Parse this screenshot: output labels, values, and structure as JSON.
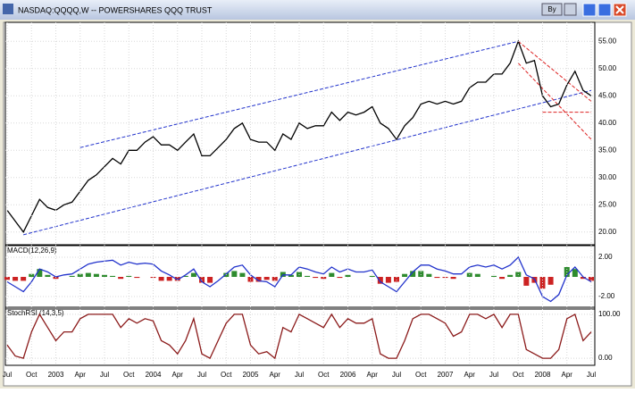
{
  "window_title": "NASDAQ:QQQQ,W -- POWERSHARES QQQ TRUST",
  "window_button": "By",
  "chart_data": [
    {
      "type": "line",
      "ylim": [
        18,
        58
      ],
      "yticks": [
        {
          "value": 20,
          "label": "20.00"
        },
        {
          "value": 25,
          "label": "25.00"
        },
        {
          "value": 30,
          "label": "30.00"
        },
        {
          "value": 35,
          "label": "35.00"
        },
        {
          "value": 40,
          "label": "40.00"
        },
        {
          "value": 45,
          "label": "45.00"
        },
        {
          "value": 50,
          "label": "50.00"
        },
        {
          "value": 55,
          "label": "55.00"
        }
      ],
      "grid": true,
      "series": [
        {
          "color": "#000000",
          "values": [
            24,
            22,
            20,
            23,
            26,
            24.5,
            24,
            25,
            25.5,
            27.5,
            29.5,
            30.5,
            32,
            33.5,
            32.5,
            35,
            35,
            36.5,
            37.5,
            36,
            36,
            35,
            36.5,
            38,
            34,
            34,
            35.5,
            37,
            39,
            40,
            37,
            36.5,
            36.5,
            35,
            38,
            37,
            40,
            39,
            39.5,
            39.5,
            42,
            40.5,
            42,
            41.5,
            42,
            43,
            40,
            39,
            37,
            39.5,
            41,
            43.5,
            44,
            43.5,
            44,
            43.5,
            44,
            46.5,
            47.5,
            47.5,
            49,
            49,
            51,
            55,
            51,
            51.5,
            45,
            43,
            43.5,
            47,
            49.5,
            46,
            45
          ]
        }
      ],
      "trendlines": [
        {
          "color": "#2233cc",
          "x": [
            9,
            63
          ],
          "y": [
            35.5,
            55
          ]
        },
        {
          "color": "#2233cc",
          "x": [
            2,
            72
          ],
          "y": [
            19.5,
            46
          ]
        },
        {
          "color": "#dd2222",
          "x": [
            63,
            72
          ],
          "y": [
            55,
            44
          ]
        },
        {
          "color": "#dd2222",
          "x": [
            63,
            72
          ],
          "y": [
            51,
            37
          ]
        },
        {
          "color": "#dd2222",
          "x": [
            66,
            72
          ],
          "y": [
            42,
            42
          ]
        }
      ]
    },
    {
      "type": "line",
      "title": "MACD(12,26,9)",
      "ylim": [
        -3,
        3
      ],
      "yticks": [
        {
          "value": 2,
          "label": "2.00"
        },
        {
          "value": -2,
          "label": "-2.00"
        }
      ],
      "grid": true,
      "series": [
        {
          "type": "bar",
          "color": "#2e8b2e",
          "negative_color": "#cc2222",
          "values": [
            -0.3,
            -0.4,
            -0.4,
            0.3,
            0.8,
            0.2,
            -0.2,
            0,
            0.1,
            0.3,
            0.4,
            0.3,
            0.2,
            0.1,
            -0.2,
            0.1,
            -0.1,
            0,
            -0.1,
            -0.4,
            -0.4,
            -0.4,
            0.1,
            0.4,
            -0.6,
            -0.6,
            0,
            0.4,
            0.6,
            0.4,
            -0.5,
            -0.5,
            -0.3,
            -0.4,
            0.5,
            0.2,
            0.5,
            0.1,
            -0.1,
            -0.2,
            0.4,
            -0.1,
            0.2,
            0,
            0,
            0.1,
            -0.7,
            -0.6,
            -0.5,
            0.3,
            0.6,
            0.6,
            0.3,
            -0.1,
            -0.1,
            -0.2,
            0,
            0.4,
            0.3,
            0,
            0.1,
            -0.2,
            0.2,
            0.5,
            -0.9,
            -0.6,
            -1.2,
            -0.8,
            0,
            1,
            0.8,
            -0.2,
            -0.4
          ]
        },
        {
          "color": "#2233cc",
          "values": [
            -0.5,
            -1,
            -1.5,
            -0.5,
            0.8,
            0.5,
            0,
            0.2,
            0.3,
            0.8,
            1.3,
            1.5,
            1.6,
            1.7,
            1.2,
            1.5,
            1.3,
            1.4,
            1.3,
            0.6,
            0.2,
            -0.3,
            0.2,
            0.8,
            -0.5,
            -1,
            -0.4,
            0.3,
            1,
            1.2,
            0.2,
            -0.4,
            -0.5,
            -1,
            0.2,
            0.2,
            1,
            0.8,
            0.5,
            0.3,
            1,
            0.5,
            0.8,
            0.5,
            0.5,
            0.7,
            -0.5,
            -1,
            -1.5,
            -0.5,
            0.5,
            1.2,
            1.2,
            0.8,
            0.6,
            0.3,
            0.3,
            1,
            1.2,
            1,
            1.2,
            0.8,
            1.2,
            2,
            0.2,
            -0.2,
            -2,
            -2.5,
            -1.8,
            0.2,
            1,
            0,
            -0.5
          ]
        }
      ]
    },
    {
      "type": "line",
      "title": "StochRSI (14,3,5)",
      "ylim": [
        -10,
        110
      ],
      "yticks": [
        {
          "value": 100,
          "label": "100.00"
        },
        {
          "value": 0,
          "label": "0.00"
        }
      ],
      "grid": true,
      "categories": [
        "Jul",
        null,
        null,
        "Oct",
        null,
        null,
        "2003",
        null,
        null,
        "Apr",
        null,
        null,
        "Jul",
        null,
        null,
        "Oct",
        null,
        null,
        "2004",
        null,
        null,
        "Apr",
        null,
        null,
        "Jul",
        null,
        null,
        "Oct",
        null,
        null,
        "2005",
        null,
        null,
        "Apr",
        null,
        null,
        "Jul",
        null,
        null,
        "Oct",
        null,
        null,
        "2006",
        null,
        null,
        "Apr",
        null,
        null,
        "Jul",
        null,
        null,
        "Oct",
        null,
        null,
        "2007",
        null,
        null,
        "Apr",
        null,
        null,
        "Jul",
        null,
        null,
        "Oct",
        null,
        null,
        "2008",
        null,
        null,
        "Apr",
        null,
        null,
        "Jul"
      ],
      "series": [
        {
          "color": "#8b1a1a",
          "values": [
            30,
            5,
            0,
            60,
            100,
            70,
            40,
            60,
            60,
            90,
            100,
            100,
            100,
            100,
            70,
            90,
            80,
            90,
            85,
            40,
            30,
            10,
            40,
            90,
            10,
            0,
            40,
            80,
            100,
            100,
            30,
            10,
            15,
            0,
            70,
            60,
            100,
            90,
            80,
            70,
            100,
            70,
            90,
            80,
            80,
            90,
            10,
            0,
            0,
            40,
            90,
            100,
            100,
            90,
            80,
            50,
            60,
            100,
            100,
            90,
            100,
            70,
            100,
            100,
            20,
            10,
            0,
            0,
            20,
            90,
            100,
            40,
            60
          ]
        }
      ]
    }
  ]
}
